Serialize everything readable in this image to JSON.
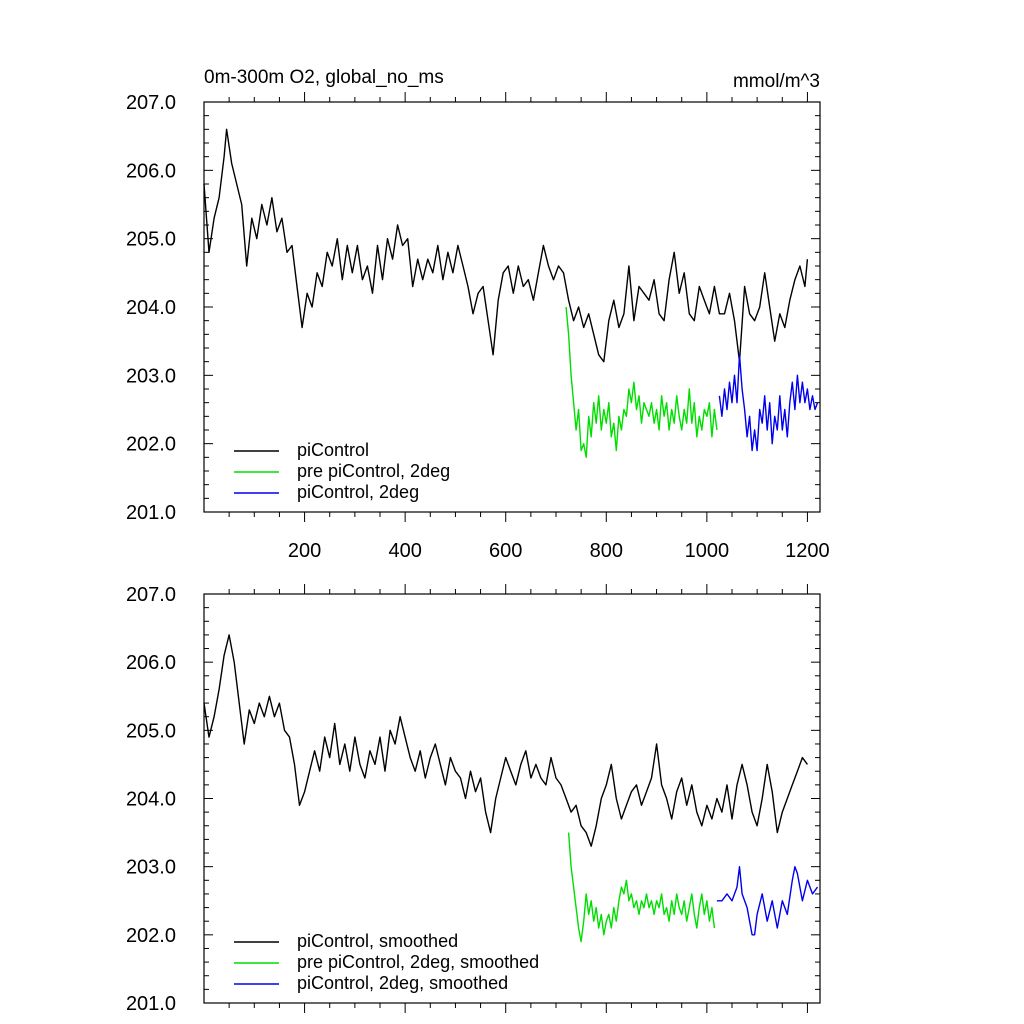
{
  "figure": {
    "title_left": "0m-300m O2, global_no_ms",
    "title_right": "mmol/m^3"
  },
  "chart_data": [
    {
      "type": "line",
      "panel": "top",
      "title": "0m-300m O2, global_no_ms",
      "units": "mmol/m^3",
      "xlim": [
        0,
        1225
      ],
      "ylim": [
        201.0,
        207.0
      ],
      "xticks": [
        200,
        400,
        600,
        800,
        1000,
        1200
      ],
      "xtick_labels": [
        "200",
        "400",
        "600",
        "800",
        "1000",
        "1200"
      ],
      "yticks": [
        201.0,
        202.0,
        203.0,
        204.0,
        205.0,
        206.0,
        207.0
      ],
      "ytick_labels": [
        "201.0",
        "202.0",
        "203.0",
        "204.0",
        "205.0",
        "206.0",
        "207.0"
      ],
      "legend_position": "bottom-left",
      "series": [
        {
          "name": "piControl",
          "color": "#000000",
          "x": [
            0,
            10,
            20,
            30,
            40,
            45,
            55,
            65,
            75,
            85,
            95,
            105,
            115,
            125,
            135,
            145,
            155,
            165,
            175,
            185,
            195,
            205,
            215,
            225,
            235,
            245,
            255,
            265,
            275,
            285,
            295,
            305,
            315,
            325,
            335,
            345,
            355,
            365,
            375,
            385,
            395,
            405,
            415,
            425,
            435,
            445,
            455,
            465,
            475,
            485,
            495,
            505,
            515,
            525,
            535,
            545,
            555,
            565,
            575,
            585,
            595,
            605,
            615,
            625,
            635,
            645,
            655,
            665,
            675,
            685,
            695,
            705,
            715,
            725,
            735,
            745,
            755,
            765,
            775,
            785,
            795,
            805,
            815,
            825,
            835,
            845,
            855,
            865,
            875,
            885,
            895,
            905,
            915,
            925,
            935,
            945,
            955,
            965,
            975,
            985,
            995,
            1005,
            1015,
            1025,
            1035,
            1045,
            1055,
            1065,
            1075,
            1085,
            1095,
            1105,
            1115,
            1125,
            1135,
            1145,
            1155,
            1165,
            1175,
            1185,
            1195,
            1200
          ],
          "values": [
            205.8,
            204.8,
            205.3,
            205.6,
            206.2,
            206.6,
            206.1,
            205.8,
            205.5,
            204.6,
            205.3,
            205.0,
            205.5,
            205.2,
            205.6,
            205.1,
            205.3,
            204.8,
            204.9,
            204.3,
            203.7,
            204.2,
            204.0,
            204.5,
            204.3,
            204.8,
            204.6,
            205.0,
            204.4,
            204.9,
            204.5,
            204.9,
            204.4,
            204.6,
            204.2,
            204.9,
            204.4,
            205.0,
            204.7,
            205.2,
            204.9,
            205.0,
            204.3,
            204.7,
            204.4,
            204.7,
            204.5,
            204.9,
            204.4,
            204.8,
            204.5,
            204.9,
            204.6,
            204.3,
            203.9,
            204.2,
            204.3,
            203.8,
            203.3,
            204.1,
            204.5,
            204.6,
            204.2,
            204.6,
            204.3,
            204.4,
            204.1,
            204.5,
            204.9,
            204.6,
            204.4,
            204.6,
            204.5,
            204.1,
            203.8,
            204.0,
            203.7,
            203.9,
            203.6,
            203.3,
            203.2,
            203.8,
            204.1,
            203.7,
            203.9,
            204.6,
            203.8,
            204.3,
            204.2,
            204.1,
            204.4,
            203.9,
            203.8,
            204.4,
            204.8,
            204.2,
            204.5,
            203.9,
            203.8,
            204.3,
            204.1,
            203.9,
            204.3,
            203.9,
            203.9,
            204.2,
            203.8,
            203.2,
            204.3,
            203.9,
            203.8,
            204.0,
            204.5,
            204.0,
            203.5,
            203.9,
            203.7,
            204.1,
            204.4,
            204.6,
            204.3,
            204.7
          ]
        },
        {
          "name": "pre piControl, 2deg",
          "color": "#00dd00",
          "x": [
            720,
            725,
            730,
            735,
            740,
            745,
            750,
            755,
            760,
            765,
            770,
            775,
            780,
            785,
            790,
            795,
            800,
            805,
            810,
            815,
            820,
            825,
            830,
            835,
            840,
            845,
            850,
            855,
            860,
            865,
            870,
            875,
            880,
            885,
            890,
            895,
            900,
            905,
            910,
            915,
            920,
            925,
            930,
            935,
            940,
            945,
            950,
            955,
            960,
            965,
            970,
            975,
            980,
            985,
            990,
            995,
            1000,
            1005,
            1010,
            1015,
            1020
          ],
          "values": [
            204.0,
            203.6,
            203.0,
            202.6,
            202.2,
            202.5,
            201.9,
            202.0,
            201.8,
            202.4,
            202.1,
            202.6,
            202.3,
            202.7,
            202.2,
            202.5,
            202.3,
            202.6,
            202.1,
            202.3,
            201.9,
            202.4,
            202.2,
            202.5,
            202.4,
            202.8,
            202.6,
            202.9,
            202.5,
            202.7,
            202.3,
            202.6,
            202.5,
            202.4,
            202.6,
            202.3,
            202.5,
            202.2,
            202.7,
            202.4,
            202.6,
            202.2,
            202.5,
            202.3,
            202.7,
            202.4,
            202.2,
            202.5,
            202.3,
            202.8,
            202.3,
            202.6,
            202.1,
            202.4,
            202.2,
            202.5,
            202.4,
            202.6,
            202.1,
            202.5,
            202.2
          ]
        },
        {
          "name": "piControl, 2deg",
          "color": "#0000ee",
          "x": [
            1025,
            1030,
            1035,
            1040,
            1045,
            1050,
            1055,
            1060,
            1065,
            1070,
            1075,
            1080,
            1085,
            1090,
            1095,
            1100,
            1105,
            1110,
            1115,
            1120,
            1125,
            1130,
            1135,
            1140,
            1145,
            1150,
            1155,
            1160,
            1165,
            1170,
            1175,
            1180,
            1185,
            1190,
            1195,
            1200,
            1205,
            1210,
            1215,
            1220
          ],
          "values": [
            202.7,
            202.4,
            202.8,
            202.5,
            202.9,
            202.6,
            203.0,
            202.6,
            203.3,
            202.8,
            202.5,
            202.1,
            202.4,
            201.9,
            202.2,
            201.9,
            202.5,
            202.3,
            202.7,
            202.2,
            202.6,
            202.0,
            202.4,
            202.2,
            202.7,
            202.2,
            202.5,
            202.1,
            202.6,
            202.9,
            202.5,
            203.0,
            202.6,
            202.9,
            202.6,
            202.8,
            202.5,
            202.7,
            202.5,
            202.6
          ]
        }
      ]
    },
    {
      "type": "line",
      "panel": "bottom",
      "xlim": [
        0,
        1225
      ],
      "ylim": [
        201.0,
        207.0
      ],
      "xticks": [
        200,
        400,
        600,
        800,
        1000,
        1200
      ],
      "yticks": [
        201.0,
        202.0,
        203.0,
        204.0,
        205.0,
        206.0,
        207.0
      ],
      "ytick_labels": [
        "201.0",
        "202.0",
        "203.0",
        "204.0",
        "205.0",
        "206.0",
        "207.0"
      ],
      "legend_position": "bottom-left",
      "series": [
        {
          "name": "piControl, smoothed",
          "color": "#000000",
          "x": [
            0,
            10,
            20,
            30,
            40,
            50,
            60,
            70,
            80,
            90,
            100,
            110,
            120,
            130,
            140,
            150,
            160,
            170,
            180,
            190,
            200,
            210,
            220,
            230,
            240,
            250,
            260,
            270,
            280,
            290,
            300,
            310,
            320,
            330,
            340,
            350,
            360,
            370,
            380,
            390,
            400,
            410,
            420,
            430,
            440,
            450,
            460,
            470,
            480,
            490,
            500,
            510,
            520,
            530,
            540,
            550,
            560,
            570,
            580,
            590,
            600,
            610,
            620,
            630,
            640,
            650,
            660,
            670,
            680,
            690,
            700,
            710,
            720,
            730,
            740,
            750,
            760,
            770,
            780,
            790,
            800,
            810,
            820,
            830,
            840,
            850,
            860,
            870,
            880,
            890,
            900,
            910,
            920,
            930,
            940,
            950,
            960,
            970,
            980,
            990,
            1000,
            1010,
            1020,
            1030,
            1040,
            1050,
            1060,
            1070,
            1080,
            1090,
            1100,
            1110,
            1120,
            1130,
            1140,
            1150,
            1160,
            1170,
            1180,
            1190,
            1200
          ],
          "values": [
            205.4,
            204.9,
            205.2,
            205.6,
            206.1,
            206.4,
            206.0,
            205.4,
            204.8,
            205.3,
            205.1,
            205.4,
            205.2,
            205.5,
            205.2,
            205.4,
            205.0,
            204.9,
            204.5,
            203.9,
            204.1,
            204.4,
            204.7,
            204.4,
            204.9,
            204.6,
            205.1,
            204.5,
            204.8,
            204.4,
            204.9,
            204.5,
            204.3,
            204.7,
            204.5,
            204.9,
            204.4,
            205.0,
            204.8,
            205.2,
            204.9,
            204.6,
            204.4,
            204.7,
            204.3,
            204.6,
            204.8,
            204.5,
            204.2,
            204.6,
            204.4,
            204.3,
            204.0,
            204.4,
            204.1,
            204.3,
            203.8,
            203.5,
            204.0,
            204.3,
            204.6,
            204.4,
            204.2,
            204.5,
            204.7,
            204.3,
            204.5,
            204.3,
            204.2,
            204.6,
            204.3,
            204.2,
            204.0,
            203.8,
            203.9,
            203.6,
            203.5,
            203.3,
            203.6,
            204.0,
            204.2,
            204.5,
            204.0,
            203.7,
            203.9,
            204.1,
            204.2,
            203.9,
            204.1,
            204.3,
            204.8,
            204.2,
            204.0,
            203.7,
            204.1,
            204.3,
            203.9,
            204.2,
            203.8,
            203.6,
            203.9,
            203.7,
            204.0,
            203.8,
            204.2,
            203.7,
            204.2,
            204.5,
            204.2,
            203.8,
            203.6,
            204.0,
            204.5,
            204.1,
            203.5,
            203.8,
            204.0,
            204.2,
            204.4,
            204.6,
            204.5
          ]
        },
        {
          "name": "pre piControl, 2deg, smoothed",
          "color": "#00dd00",
          "x": [
            725,
            730,
            735,
            740,
            745,
            750,
            755,
            760,
            765,
            770,
            775,
            780,
            785,
            790,
            795,
            800,
            805,
            810,
            815,
            820,
            825,
            830,
            835,
            840,
            845,
            850,
            855,
            860,
            865,
            870,
            875,
            880,
            885,
            890,
            895,
            900,
            905,
            910,
            915,
            920,
            925,
            930,
            935,
            940,
            945,
            950,
            955,
            960,
            965,
            970,
            975,
            980,
            985,
            990,
            995,
            1000,
            1005,
            1010,
            1015
          ],
          "values": [
            203.5,
            203.0,
            202.7,
            202.4,
            202.1,
            201.9,
            202.2,
            202.6,
            202.3,
            202.5,
            202.2,
            202.4,
            202.1,
            202.3,
            202.0,
            202.2,
            202.3,
            202.1,
            202.4,
            202.2,
            202.5,
            202.7,
            202.6,
            202.8,
            202.5,
            202.6,
            202.4,
            202.5,
            202.3,
            202.5,
            202.4,
            202.6,
            202.4,
            202.5,
            202.3,
            202.5,
            202.4,
            202.6,
            202.3,
            202.4,
            202.2,
            202.5,
            202.3,
            202.6,
            202.4,
            202.3,
            202.5,
            202.2,
            202.4,
            202.6,
            202.3,
            202.1,
            202.4,
            202.6,
            202.3,
            202.5,
            202.2,
            202.4,
            202.1
          ]
        },
        {
          "name": "piControl, 2deg, smoothed",
          "color": "#0000ee",
          "x": [
            1020,
            1030,
            1040,
            1050,
            1060,
            1065,
            1070,
            1080,
            1090,
            1095,
            1100,
            1110,
            1120,
            1130,
            1140,
            1150,
            1160,
            1170,
            1175,
            1180,
            1190,
            1200,
            1210,
            1220
          ],
          "values": [
            202.5,
            202.5,
            202.6,
            202.5,
            202.7,
            203.0,
            202.6,
            202.4,
            202.0,
            202.0,
            202.3,
            202.6,
            202.2,
            202.5,
            202.1,
            202.5,
            202.3,
            202.8,
            203.0,
            202.9,
            202.5,
            202.8,
            202.6,
            202.7
          ]
        }
      ]
    }
  ]
}
